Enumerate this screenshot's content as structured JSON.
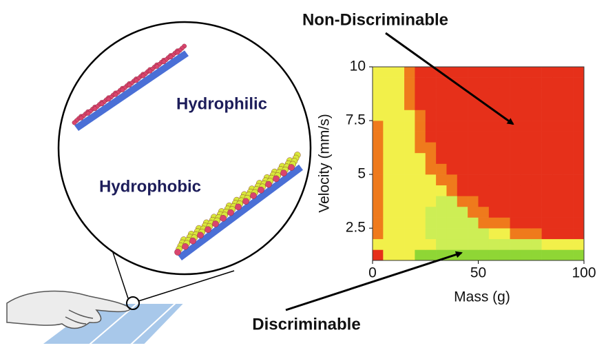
{
  "chart_data": {
    "type": "heatmap",
    "xlabel": "Mass (g)",
    "ylabel": "Velocity (mm/s)",
    "xlim": [
      0,
      100
    ],
    "ylim": [
      1,
      10
    ],
    "xticks": [
      0,
      50,
      100
    ],
    "yticks": [
      2.5,
      5,
      7.5,
      10
    ],
    "x": [
      2.5,
      7.5,
      12.5,
      17.5,
      22.5,
      27.5,
      32.5,
      37.5,
      42.5,
      47.5,
      52.5,
      57.5,
      62.5,
      67.5,
      72.5,
      77.5,
      82.5,
      87.5,
      92.5,
      97.5
    ],
    "y": [
      1.25,
      1.75,
      2.25,
      2.75,
      3.25,
      3.75,
      4.25,
      4.75,
      5.25,
      5.75,
      6.25,
      6.75,
      7.25,
      7.75,
      8.25,
      8.75,
      9.25,
      9.75
    ],
    "level_colors": [
      "#8fd635",
      "#cdee55",
      "#f2f04a",
      "#ef7a1c",
      "#e6301a"
    ],
    "z": [
      [
        4,
        2,
        2,
        2,
        0,
        0,
        0,
        0,
        0,
        0,
        0,
        0,
        0,
        0,
        0,
        0,
        0,
        0,
        0,
        0
      ],
      [
        2,
        2,
        2,
        2,
        2,
        2,
        1,
        1,
        1,
        1,
        1,
        1,
        1,
        1,
        1,
        1,
        2,
        2,
        2,
        2
      ],
      [
        3,
        2,
        2,
        2,
        2,
        1,
        1,
        1,
        1,
        1,
        1,
        2,
        2,
        3,
        3,
        3,
        4,
        4,
        4,
        4
      ],
      [
        3,
        2,
        2,
        2,
        2,
        1,
        1,
        1,
        1,
        1,
        3,
        3,
        3,
        4,
        4,
        4,
        4,
        4,
        4,
        4
      ],
      [
        3,
        2,
        2,
        2,
        2,
        1,
        1,
        1,
        1,
        3,
        3,
        4,
        4,
        4,
        4,
        4,
        4,
        4,
        4,
        4
      ],
      [
        3,
        2,
        2,
        2,
        2,
        2,
        1,
        1,
        3,
        3,
        4,
        4,
        4,
        4,
        4,
        4,
        4,
        4,
        4,
        4
      ],
      [
        3,
        2,
        2,
        2,
        2,
        2,
        2,
        3,
        4,
        4,
        4,
        4,
        4,
        4,
        4,
        4,
        4,
        4,
        4,
        4
      ],
      [
        3,
        2,
        2,
        2,
        2,
        2,
        3,
        3,
        4,
        4,
        4,
        4,
        4,
        4,
        4,
        4,
        4,
        4,
        4,
        4
      ],
      [
        3,
        2,
        2,
        2,
        2,
        3,
        3,
        4,
        4,
        4,
        4,
        4,
        4,
        4,
        4,
        4,
        4,
        4,
        4,
        4
      ],
      [
        3,
        2,
        2,
        2,
        2,
        3,
        4,
        4,
        4,
        4,
        4,
        4,
        4,
        4,
        4,
        4,
        4,
        4,
        4,
        4
      ],
      [
        3,
        2,
        2,
        2,
        3,
        3,
        4,
        4,
        4,
        4,
        4,
        4,
        4,
        4,
        4,
        4,
        4,
        4,
        4,
        4
      ],
      [
        3,
        2,
        2,
        2,
        3,
        4,
        4,
        4,
        4,
        4,
        4,
        4,
        4,
        4,
        4,
        4,
        4,
        4,
        4,
        4
      ],
      [
        3,
        2,
        2,
        2,
        3,
        4,
        4,
        4,
        4,
        4,
        4,
        4,
        4,
        4,
        4,
        4,
        4,
        4,
        4,
        4
      ],
      [
        2,
        2,
        2,
        2,
        3,
        4,
        4,
        4,
        4,
        4,
        4,
        4,
        4,
        4,
        4,
        4,
        4,
        4,
        4,
        4
      ],
      [
        2,
        2,
        2,
        3,
        4,
        4,
        4,
        4,
        4,
        4,
        4,
        4,
        4,
        4,
        4,
        4,
        4,
        4,
        4,
        4
      ],
      [
        2,
        2,
        2,
        3,
        4,
        4,
        4,
        4,
        4,
        4,
        4,
        4,
        4,
        4,
        4,
        4,
        4,
        4,
        4,
        4
      ],
      [
        2,
        2,
        2,
        3,
        4,
        4,
        4,
        4,
        4,
        4,
        4,
        4,
        4,
        4,
        4,
        4,
        4,
        4,
        4,
        4
      ],
      [
        2,
        2,
        2,
        3,
        4,
        4,
        4,
        4,
        4,
        4,
        4,
        4,
        4,
        4,
        4,
        4,
        4,
        4,
        4,
        4
      ]
    ],
    "annotations": [
      "Non-Discriminable",
      "Discriminable"
    ]
  },
  "illustration": {
    "labels": [
      "Hydrophilic",
      "Hydrophobic"
    ]
  }
}
